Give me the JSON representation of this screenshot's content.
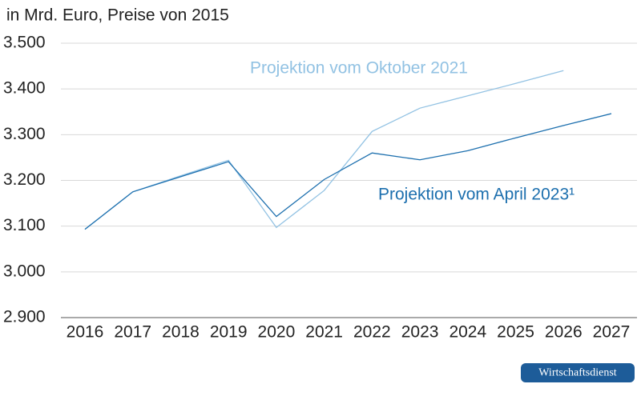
{
  "chart_data": {
    "type": "line",
    "subtitle": "in Mrd. Euro, Preise von 2015",
    "categories": [
      "2016",
      "2017",
      "2018",
      "2019",
      "2020",
      "2021",
      "2022",
      "2023",
      "2024",
      "2025",
      "2026",
      "2027"
    ],
    "series": [
      {
        "name": "Projektion vom Oktober 2021",
        "color": "#92c2e3",
        "values": [
          3093,
          3175,
          3210,
          3244,
          3097,
          3178,
          3307,
          3358,
          3385,
          3412,
          3440,
          null
        ]
      },
      {
        "name": "Projektion vom April 2023¹",
        "color": "#1c6fae",
        "values": [
          3093,
          3175,
          3208,
          3241,
          3121,
          3202,
          3260,
          3245,
          3265,
          3293,
          3320,
          3346
        ]
      }
    ],
    "ylim": [
      2900,
      3500
    ],
    "yticks": [
      {
        "value": 2900,
        "label": "2.900"
      },
      {
        "value": 3000,
        "label": "3.000"
      },
      {
        "value": 3100,
        "label": "3.100"
      },
      {
        "value": 3200,
        "label": "3.200"
      },
      {
        "value": 3300,
        "label": "3.300"
      },
      {
        "value": 3400,
        "label": "3.400"
      },
      {
        "value": 3500,
        "label": "3.500"
      }
    ],
    "grid": true,
    "source": "Wirtschaftsdienst"
  }
}
